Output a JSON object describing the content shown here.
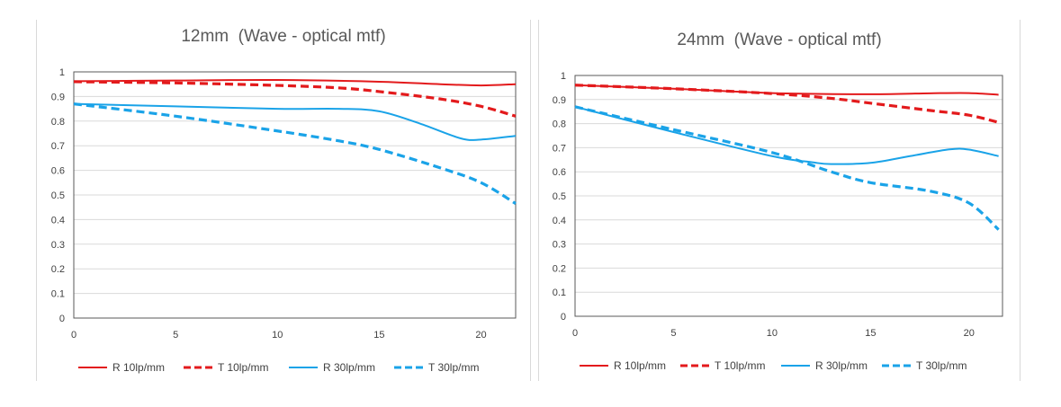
{
  "chart_data": [
    {
      "type": "line",
      "title": "12mm  (Wave - optical mtf)",
      "xlabel": "",
      "ylabel": "",
      "xlim": [
        0,
        21.7
      ],
      "ylim": [
        0,
        1
      ],
      "xticks": [
        "0",
        "5",
        "10",
        "15",
        "20"
      ],
      "yticks": [
        "0",
        "0.1",
        "0.2",
        "0.3",
        "0.4",
        "0.5",
        "0.6",
        "0.7",
        "0.8",
        "0.9",
        "1"
      ],
      "grid": true,
      "legend": "bottom",
      "series": [
        {
          "name": "R 10lp/mm",
          "color": "#e31a1c",
          "dash": "solid",
          "x": [
            0,
            5,
            10,
            15,
            18,
            20,
            21.7
          ],
          "y": [
            0.962,
            0.965,
            0.967,
            0.96,
            0.95,
            0.945,
            0.95
          ]
        },
        {
          "name": "T 10lp/mm",
          "color": "#e31a1c",
          "dash": "dashed",
          "x": [
            0,
            5,
            10,
            13,
            15,
            18,
            20,
            21.7
          ],
          "y": [
            0.96,
            0.955,
            0.945,
            0.935,
            0.92,
            0.89,
            0.86,
            0.82
          ]
        },
        {
          "name": "R 30lp/mm",
          "color": "#1aa3e8",
          "dash": "solid",
          "x": [
            0,
            5,
            10,
            13,
            15,
            17,
            19,
            20,
            21.7
          ],
          "y": [
            0.87,
            0.86,
            0.85,
            0.85,
            0.84,
            0.79,
            0.73,
            0.725,
            0.74
          ]
        },
        {
          "name": "T 30lp/mm",
          "color": "#1aa3e8",
          "dash": "dashed",
          "x": [
            0,
            5,
            10,
            13,
            15,
            18,
            20,
            21.7
          ],
          "y": [
            0.87,
            0.82,
            0.76,
            0.72,
            0.685,
            0.61,
            0.55,
            0.465
          ]
        }
      ]
    },
    {
      "type": "line",
      "title": "24mm  (Wave - optical mtf)",
      "xlabel": "",
      "ylabel": "",
      "xlim": [
        0,
        21.7
      ],
      "ylim": [
        0,
        1
      ],
      "xticks": [
        "0",
        "5",
        "10",
        "15",
        "20"
      ],
      "yticks": [
        "0",
        "0.1",
        "0.2",
        "0.3",
        "0.4",
        "0.5",
        "0.6",
        "0.7",
        "0.8",
        "0.9",
        "1"
      ],
      "grid": true,
      "legend": "bottom",
      "series": [
        {
          "name": "R 10lp/mm",
          "color": "#e31a1c",
          "dash": "solid",
          "x": [
            0,
            5,
            10,
            15,
            18,
            20,
            21.5
          ],
          "y": [
            0.96,
            0.945,
            0.927,
            0.922,
            0.926,
            0.927,
            0.92
          ]
        },
        {
          "name": "T 10lp/mm",
          "color": "#e31a1c",
          "dash": "dashed",
          "x": [
            0,
            5,
            10,
            13,
            15,
            18,
            20,
            21.5
          ],
          "y": [
            0.96,
            0.945,
            0.925,
            0.905,
            0.885,
            0.855,
            0.835,
            0.805
          ]
        },
        {
          "name": "R 30lp/mm",
          "color": "#1aa3e8",
          "dash": "solid",
          "x": [
            0,
            5,
            10,
            12,
            13,
            15,
            17,
            19,
            20,
            21.5
          ],
          "y": [
            0.87,
            0.765,
            0.665,
            0.64,
            0.632,
            0.637,
            0.665,
            0.693,
            0.692,
            0.665
          ]
        },
        {
          "name": "T 30lp/mm",
          "color": "#1aa3e8",
          "dash": "dashed",
          "x": [
            0,
            5,
            10,
            13,
            15,
            18,
            20,
            21.5
          ],
          "y": [
            0.87,
            0.775,
            0.68,
            0.6,
            0.555,
            0.52,
            0.47,
            0.36
          ]
        }
      ]
    }
  ]
}
